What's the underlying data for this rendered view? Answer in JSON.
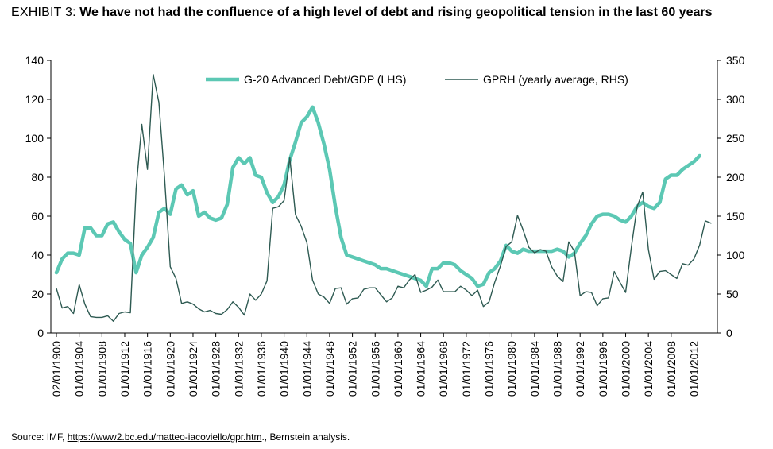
{
  "header": {
    "exhibit": "EXHIBIT 3:",
    "title": "We have not had the confluence of a high level of debt and rising geopolitical tension in the last 60 years"
  },
  "source": {
    "prefix": "Source: IMF, ",
    "link": "https://www2.bc.edu/matteo-iacoviello/gpr.htm",
    "suffix": "., Bernstein analysis."
  },
  "colors": {
    "debt": "#5cc8b4",
    "gprh": "#2e5a52",
    "axis": "#000000"
  },
  "chart_data": {
    "type": "line",
    "title": "",
    "y_left": {
      "min": 0,
      "max": 140,
      "ticks": [
        0,
        20,
        40,
        60,
        80,
        100,
        120,
        140
      ]
    },
    "y_right": {
      "min": 0,
      "max": 350,
      "ticks": [
        0,
        50,
        100,
        150,
        200,
        250,
        300,
        350
      ]
    },
    "x_tick_labels": [
      "02/01/1900",
      "01/01/1904",
      "01/01/1908",
      "01/01/1912",
      "01/01/1916",
      "01/01/1920",
      "01/01/1924",
      "01/01/1928",
      "01/01/1932",
      "01/01/1936",
      "01/01/1940",
      "01/01/1944",
      "01/01/1948",
      "01/01/1952",
      "01/01/1956",
      "01/01/1960",
      "01/01/1964",
      "01/01/1968",
      "01/01/1972",
      "01/01/1976",
      "01/01/1980",
      "01/01/1984",
      "01/01/1988",
      "01/01/1992",
      "01/01/1996",
      "01/01/2000",
      "01/01/2004",
      "01/01/2008",
      "01/01/2012"
    ],
    "legend_position": "top",
    "series": [
      {
        "name": "G-20 Advanced Debt/GDP (LHS)",
        "axis": "left",
        "start_year": 1900,
        "values": [
          31,
          38,
          41,
          41,
          40,
          54,
          54,
          50,
          50,
          56,
          57,
          52,
          48,
          46,
          31,
          40,
          44,
          49,
          62,
          64,
          61,
          74,
          76,
          71,
          73,
          60,
          62,
          59,
          58,
          59,
          66,
          85,
          90,
          87,
          90,
          81,
          80,
          72,
          67,
          70,
          76,
          89,
          98,
          108,
          111,
          116,
          108,
          97,
          84,
          65,
          49,
          40,
          39,
          38,
          37,
          36,
          35,
          33,
          33,
          32,
          31,
          30,
          29,
          28,
          27,
          24,
          33,
          33,
          36,
          36,
          35,
          32,
          30,
          28,
          24,
          25,
          31,
          33,
          37,
          45,
          42,
          41,
          43,
          42,
          42,
          42,
          42,
          42,
          43,
          42,
          39,
          41,
          46,
          50,
          56,
          60,
          61,
          61,
          60,
          58,
          57,
          60,
          65,
          67,
          65,
          64,
          67,
          79,
          81,
          81,
          84,
          86,
          88,
          91
        ]
      },
      {
        "name": "GPRH (yearly average, RHS)",
        "axis": "right",
        "start_year": 1900,
        "values": [
          57,
          32,
          34,
          25,
          62,
          37,
          21,
          20,
          20,
          22,
          15,
          25,
          27,
          26,
          185,
          268,
          210,
          332,
          296,
          200,
          85,
          70,
          38,
          40,
          37,
          31,
          27,
          29,
          25,
          24,
          30,
          40,
          33,
          23,
          50,
          42,
          50,
          67,
          160,
          162,
          170,
          225,
          152,
          137,
          116,
          68,
          50,
          46,
          38,
          57,
          58,
          37,
          44,
          45,
          56,
          58,
          58,
          49,
          40,
          45,
          60,
          58,
          68,
          75,
          52,
          55,
          59,
          68,
          53,
          53,
          53,
          60,
          55,
          48,
          55,
          34,
          40,
          65,
          86,
          111,
          117,
          151,
          132,
          110,
          103,
          107,
          105,
          85,
          73,
          66,
          117,
          105,
          48,
          53,
          52,
          35,
          44,
          45,
          79,
          65,
          52,
          110,
          162,
          181,
          107,
          69,
          79,
          80,
          75,
          70,
          89,
          87,
          95,
          113,
          144,
          141
        ]
      }
    ]
  }
}
